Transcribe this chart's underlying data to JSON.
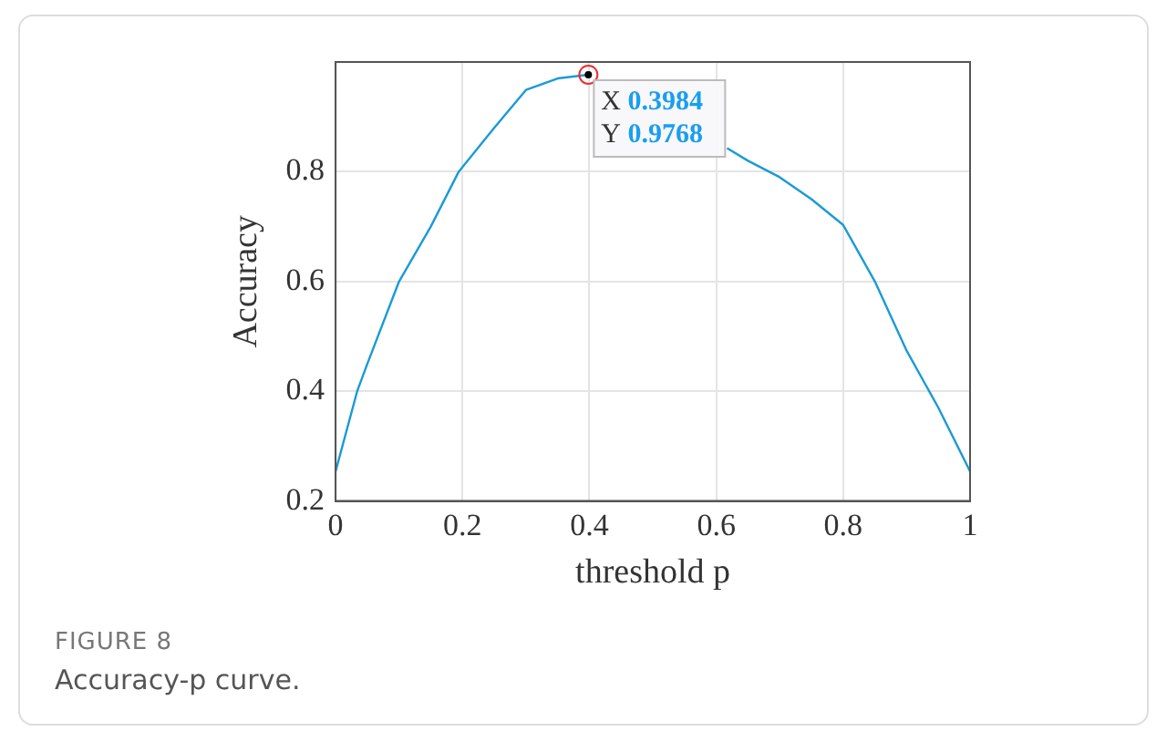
{
  "chart_data": {
    "type": "line",
    "xlabel": "threshold p",
    "ylabel": "Accuracy",
    "x": [
      0,
      0.034,
      0.05,
      0.1,
      0.15,
      0.194,
      0.25,
      0.3,
      0.35,
      0.3984,
      0.45,
      0.5,
      0.6,
      0.617,
      0.65,
      0.7,
      0.75,
      0.8,
      0.85,
      0.9,
      0.95,
      1
    ],
    "series": [
      {
        "color": "#1a9ad6",
        "values": [
          0.254,
          0.4,
          0.45,
          0.6,
          0.7,
          0.8,
          0.88,
          0.949,
          0.97,
          0.9768,
          null,
          null,
          null,
          0.843,
          0.82,
          0.79,
          0.75,
          0.703,
          0.6,
          0.474,
          0.37,
          0.254
        ]
      }
    ],
    "xlim": [
      0,
      1
    ],
    "xticks": [
      0,
      0.2,
      0.4,
      0.6,
      0.8,
      1
    ],
    "ylim": [
      0.2,
      1
    ],
    "yticks": [
      0.2,
      0.4,
      0.6,
      0.8
    ],
    "grid": true,
    "legend": false,
    "marker": "none",
    "line_style": "solid",
    "annotations": [
      {
        "text": "X 0.3984\nY 0.9768",
        "x": 0.3984,
        "y": 0.9768
      },
      "FIGURE 8",
      "Accuracy-p curve."
    ]
  }
}
